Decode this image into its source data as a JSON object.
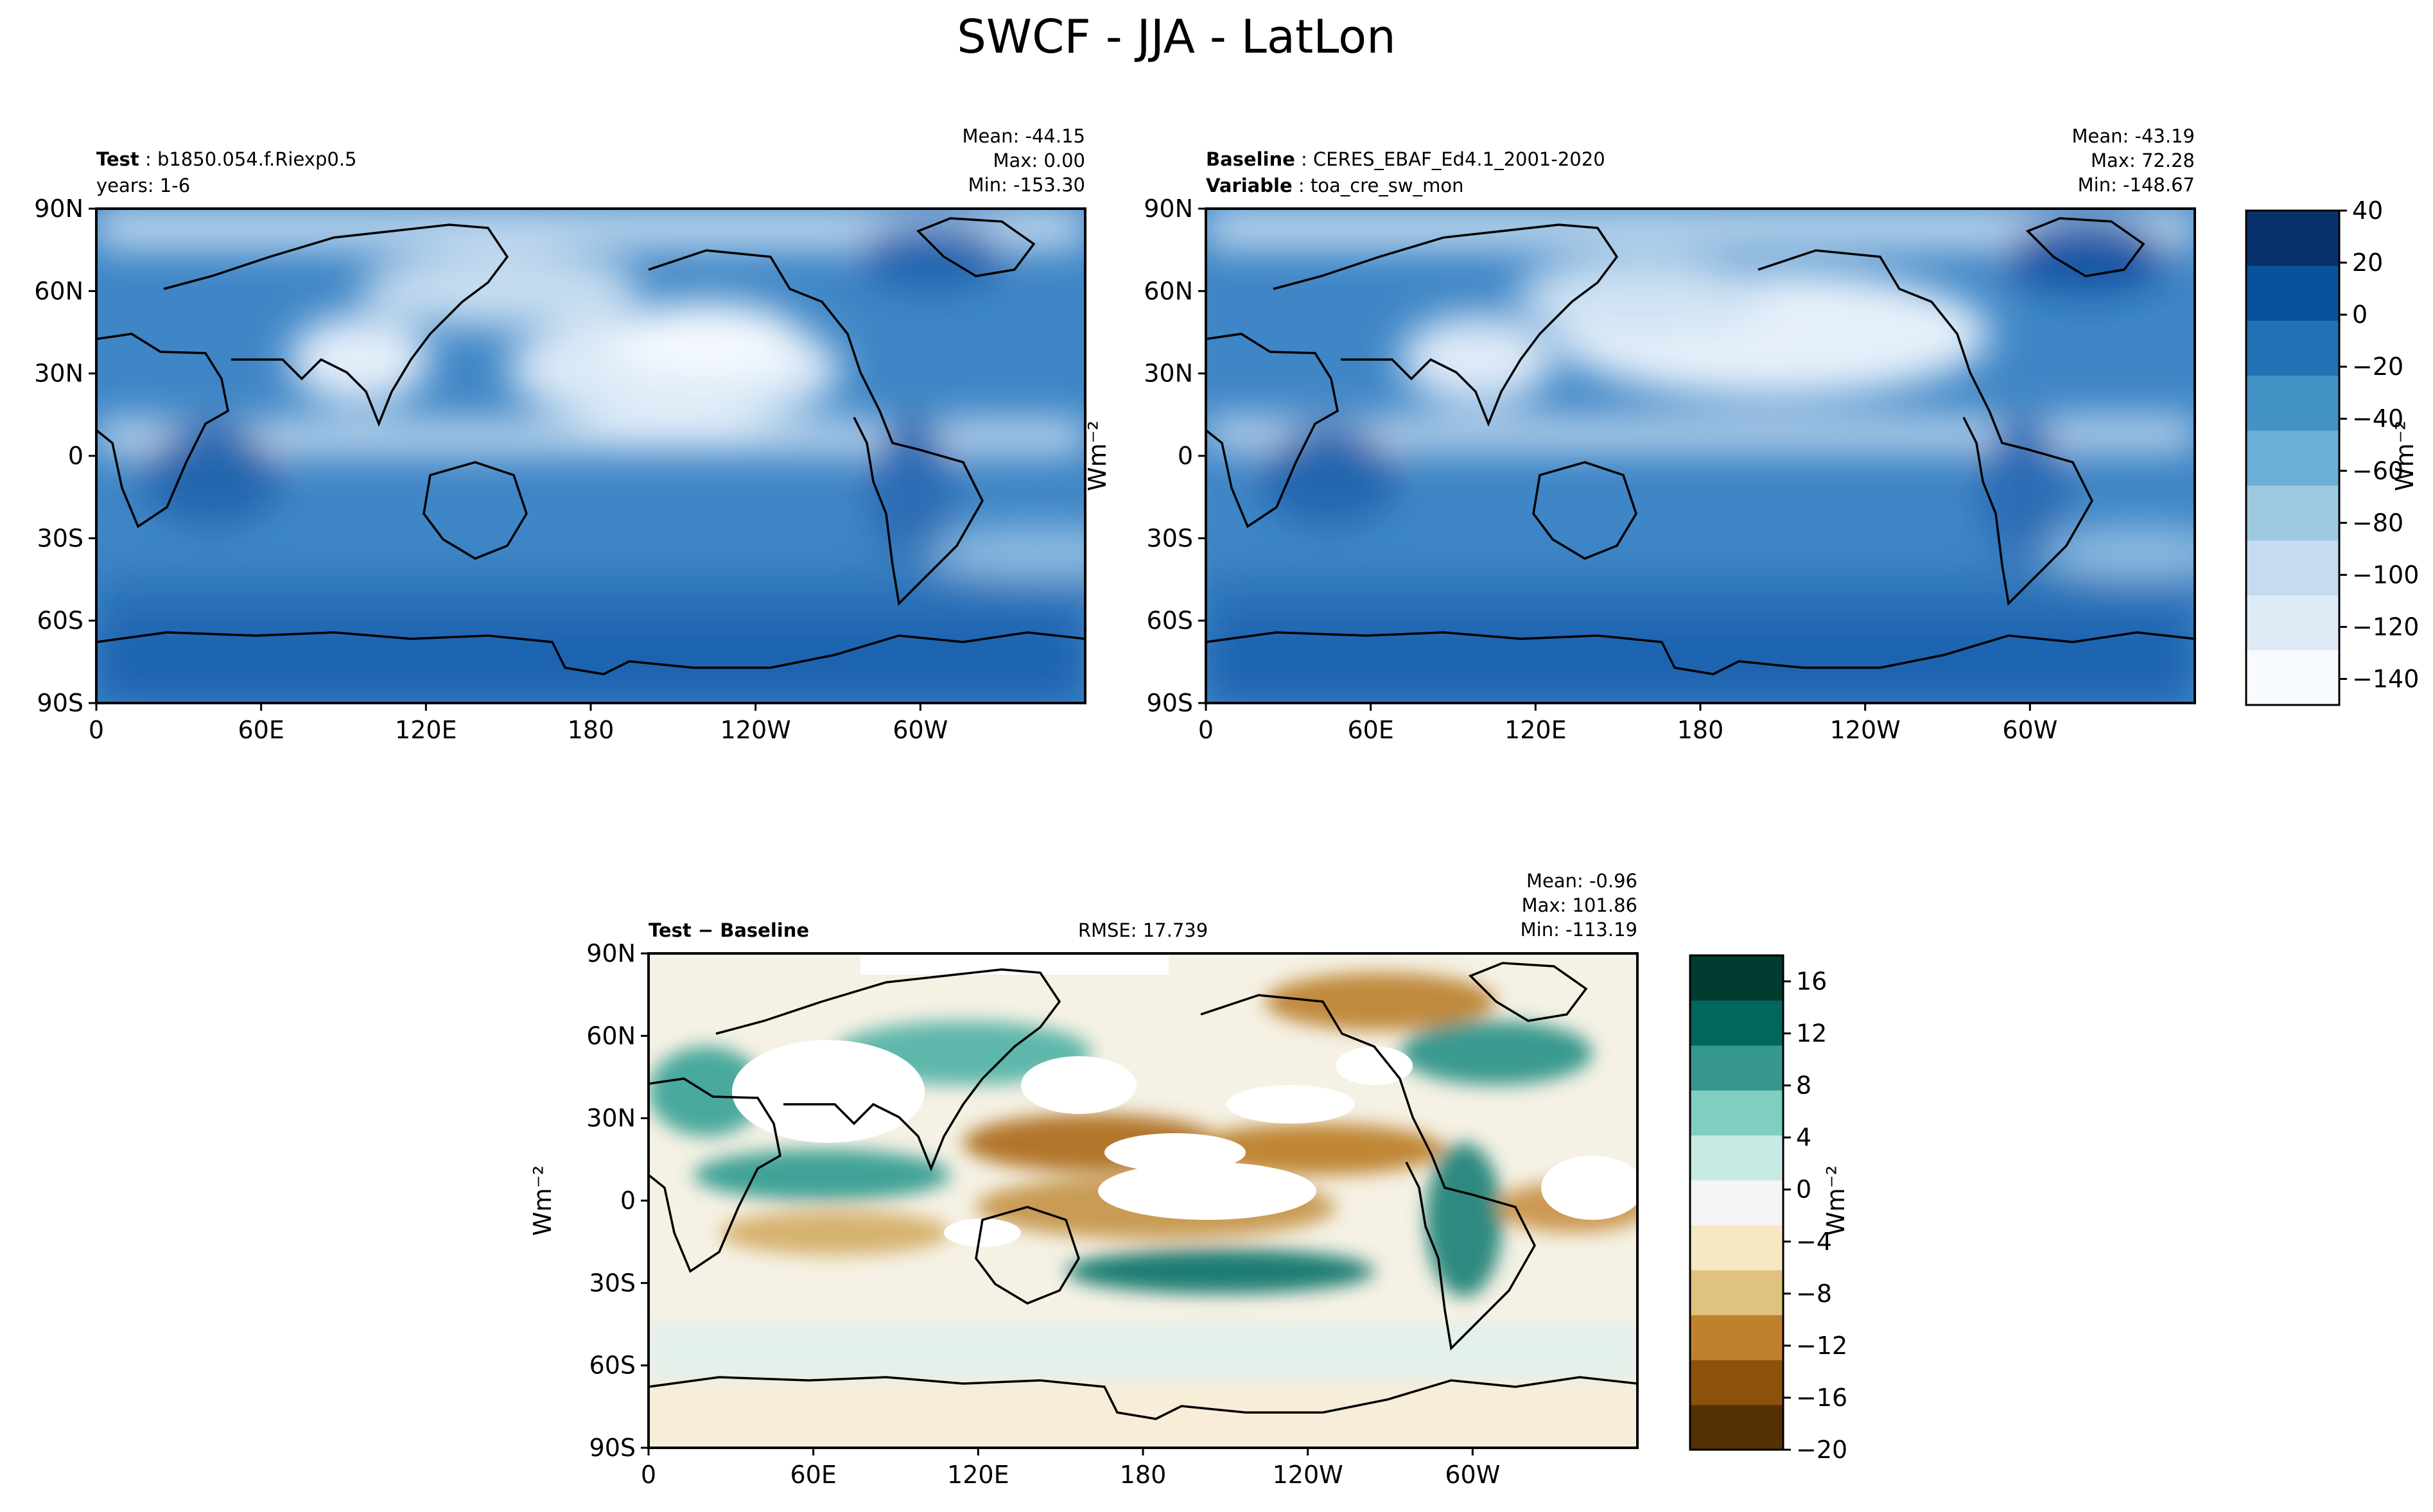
{
  "figure": {
    "title": "SWCF - JJA - LatLon"
  },
  "panels": {
    "test": {
      "label_bold": "Test",
      "label_value": "b1850.054.f.Riexp0.5",
      "line2_bold": "",
      "line2_value": "years: 1-6",
      "stats": {
        "mean": "Mean: -44.15",
        "max": "Max:  0.00",
        "min": "Min: -153.30"
      }
    },
    "baseline": {
      "label_bold": "Baseline",
      "label_value": "CERES_EBAF_Ed4.1_2001-2020",
      "line2_bold": "Variable",
      "line2_value": "toa_cre_sw_mon",
      "stats": {
        "mean": "Mean: -43.19",
        "max": "Max: 72.28",
        "min": "Min: -148.67"
      }
    },
    "diff": {
      "label_bold": "Test − Baseline",
      "rmse": "RMSE: 17.739",
      "stats": {
        "mean": "Mean: -0.96",
        "max": "Max: 101.86",
        "min": "Min: -113.19"
      }
    }
  },
  "axes": {
    "lat_ticks": [
      "90N",
      "60N",
      "30N",
      "0",
      "30S",
      "60S",
      "90S"
    ],
    "lon_ticks": [
      "0",
      "60E",
      "120E",
      "180",
      "120W",
      "60W"
    ]
  },
  "colorbars": {
    "main": {
      "label": "Wm⁻²",
      "range": [
        -150,
        40
      ],
      "ticks": [
        "40",
        "20",
        "0",
        "−20",
        "−40",
        "−60",
        "−80",
        "−100",
        "−120",
        "−140"
      ],
      "colors": [
        "#f7fbff",
        "#deebf7",
        "#c6dbef",
        "#9ecae1",
        "#6baed6",
        "#4292c6",
        "#2171b5",
        "#08519c",
        "#08306b"
      ]
    },
    "diff": {
      "label": "Wm⁻²",
      "range": [
        -20,
        18
      ],
      "ticks": [
        "16",
        "12",
        "8",
        "4",
        "0",
        "−4",
        "−8",
        "−12",
        "−16",
        "−20"
      ],
      "colors": [
        "#543005",
        "#8c510a",
        "#bf812d",
        "#dfc27d",
        "#f6e8c3",
        "#f5f5f5",
        "#c7eae5",
        "#80cdc1",
        "#35978f",
        "#01665e",
        "#003c30"
      ]
    }
  },
  "map_colors": {
    "main_fill": "#3f86c6",
    "main_dark": "#1f64b0",
    "main_light": "#eef5fc",
    "diff_fill": "#f3f0e6",
    "diff_teal": "#2a8c82",
    "diff_brown": "#b87a2c"
  }
}
